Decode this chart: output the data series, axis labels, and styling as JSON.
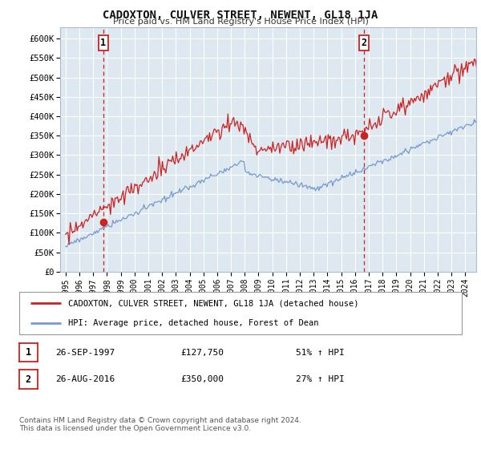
{
  "title": "CADOXTON, CULVER STREET, NEWENT, GL18 1JA",
  "subtitle": "Price paid vs. HM Land Registry's House Price Index (HPI)",
  "bg_color": "#ffffff",
  "plot_bg_color": "#dde8f0",
  "grid_color": "#ffffff",
  "red_color": "#cc2222",
  "blue_color": "#7799cc",
  "dashed_color": "#cc2222",
  "ylim": [
    0,
    630000
  ],
  "yticks": [
    0,
    50000,
    100000,
    150000,
    200000,
    250000,
    300000,
    350000,
    400000,
    450000,
    500000,
    550000,
    600000
  ],
  "ytick_labels": [
    "£0",
    "£50K",
    "£100K",
    "£150K",
    "£200K",
    "£250K",
    "£300K",
    "£350K",
    "£400K",
    "£450K",
    "£500K",
    "£550K",
    "£600K"
  ],
  "xlim_start": 1994.6,
  "xlim_end": 2024.8,
  "xticks": [
    1995,
    1996,
    1997,
    1998,
    1999,
    2000,
    2001,
    2002,
    2003,
    2004,
    2005,
    2006,
    2007,
    2008,
    2009,
    2010,
    2011,
    2012,
    2013,
    2014,
    2015,
    2016,
    2017,
    2018,
    2019,
    2020,
    2021,
    2022,
    2023,
    2024
  ],
  "marker1_x": 1997.73,
  "marker1_y": 127750,
  "marker1_label": "1",
  "marker2_x": 2016.65,
  "marker2_y": 350000,
  "marker2_label": "2",
  "footnote": "Contains HM Land Registry data © Crown copyright and database right 2024.\nThis data is licensed under the Open Government Licence v3.0.",
  "legend_line1": "CADOXTON, CULVER STREET, NEWENT, GL18 1JA (detached house)",
  "legend_line2": "HPI: Average price, detached house, Forest of Dean",
  "table_rows": [
    {
      "num": "1",
      "date": "26-SEP-1997",
      "price": "£127,750",
      "hpi": "51% ↑ HPI"
    },
    {
      "num": "2",
      "date": "26-AUG-2016",
      "price": "£350,000",
      "hpi": "27% ↑ HPI"
    }
  ]
}
